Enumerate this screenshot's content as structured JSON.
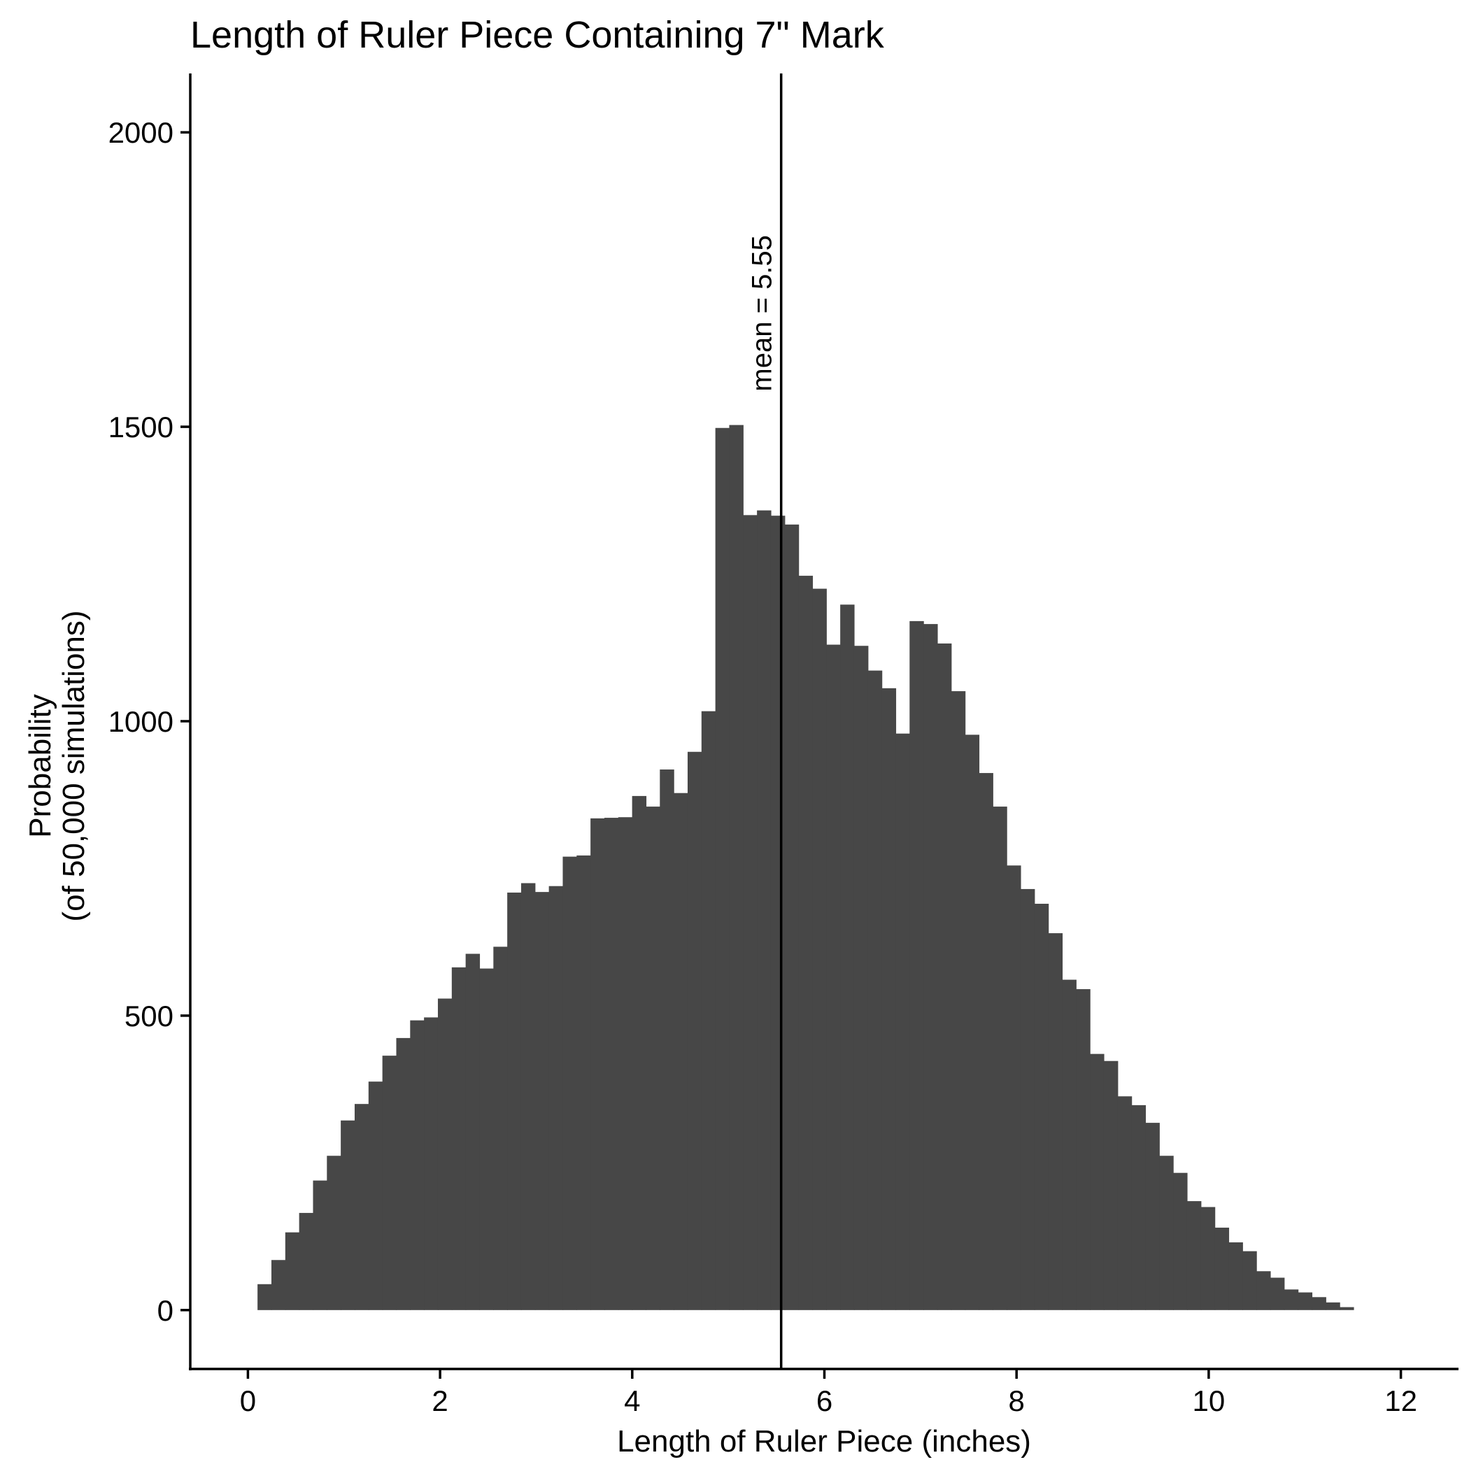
{
  "chart_data": {
    "type": "bar",
    "title": "Length of Ruler Piece Containing 7\" Mark",
    "xlabel": "Length of Ruler Piece (inches)",
    "ylabel_lines": [
      "Probability",
      "(of 50,000 simulations)"
    ],
    "xlim": [
      -0.6,
      12.6
    ],
    "ylim": [
      -100,
      2100
    ],
    "xticks": [
      0,
      2,
      4,
      6,
      8,
      10,
      12
    ],
    "yticks": [
      0,
      500,
      1000,
      1500,
      2000
    ],
    "bin_width": 0.1444,
    "bin_start": 0.1,
    "bar_color": "#474747",
    "grid": false,
    "mean": {
      "value": 5.55,
      "label": "mean = 5.55"
    },
    "values": [
      44,
      85,
      132,
      165,
      220,
      262,
      322,
      350,
      388,
      432,
      462,
      492,
      497,
      529,
      582,
      605,
      580,
      617,
      709,
      725,
      710,
      720,
      770,
      772,
      835,
      836,
      837,
      873,
      855,
      918,
      878,
      948,
      1017,
      1498,
      1503,
      1350,
      1358,
      1349,
      1334,
      1247,
      1225,
      1130,
      1198,
      1128,
      1086,
      1056,
      979,
      1170,
      1165,
      1132,
      1051,
      977,
      912,
      855,
      755,
      715,
      690,
      640,
      561,
      545,
      435,
      423,
      363,
      348,
      318,
      262,
      233,
      185,
      175,
      140,
      115,
      100,
      66,
      55,
      35,
      30,
      22,
      13,
      5
    ]
  }
}
